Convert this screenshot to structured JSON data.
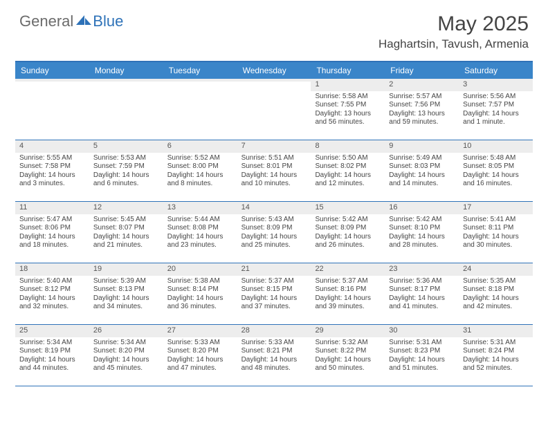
{
  "brand": {
    "general": "General",
    "blue": "Blue"
  },
  "title": "May 2025",
  "location": "Haghartsin, Tavush, Armenia",
  "colors": {
    "header_bg": "#3a85c9",
    "rule": "#2e72b8",
    "daynum_bg": "#ededed",
    "text": "#444444"
  },
  "dow": [
    "Sunday",
    "Monday",
    "Tuesday",
    "Wednesday",
    "Thursday",
    "Friday",
    "Saturday"
  ],
  "weeks": [
    [
      {
        "n": "",
        "sr": "",
        "ss": "",
        "dl": ""
      },
      {
        "n": "",
        "sr": "",
        "ss": "",
        "dl": ""
      },
      {
        "n": "",
        "sr": "",
        "ss": "",
        "dl": ""
      },
      {
        "n": "",
        "sr": "",
        "ss": "",
        "dl": ""
      },
      {
        "n": "1",
        "sr": "Sunrise: 5:58 AM",
        "ss": "Sunset: 7:55 PM",
        "dl": "Daylight: 13 hours and 56 minutes."
      },
      {
        "n": "2",
        "sr": "Sunrise: 5:57 AM",
        "ss": "Sunset: 7:56 PM",
        "dl": "Daylight: 13 hours and 59 minutes."
      },
      {
        "n": "3",
        "sr": "Sunrise: 5:56 AM",
        "ss": "Sunset: 7:57 PM",
        "dl": "Daylight: 14 hours and 1 minute."
      }
    ],
    [
      {
        "n": "4",
        "sr": "Sunrise: 5:55 AM",
        "ss": "Sunset: 7:58 PM",
        "dl": "Daylight: 14 hours and 3 minutes."
      },
      {
        "n": "5",
        "sr": "Sunrise: 5:53 AM",
        "ss": "Sunset: 7:59 PM",
        "dl": "Daylight: 14 hours and 6 minutes."
      },
      {
        "n": "6",
        "sr": "Sunrise: 5:52 AM",
        "ss": "Sunset: 8:00 PM",
        "dl": "Daylight: 14 hours and 8 minutes."
      },
      {
        "n": "7",
        "sr": "Sunrise: 5:51 AM",
        "ss": "Sunset: 8:01 PM",
        "dl": "Daylight: 14 hours and 10 minutes."
      },
      {
        "n": "8",
        "sr": "Sunrise: 5:50 AM",
        "ss": "Sunset: 8:02 PM",
        "dl": "Daylight: 14 hours and 12 minutes."
      },
      {
        "n": "9",
        "sr": "Sunrise: 5:49 AM",
        "ss": "Sunset: 8:03 PM",
        "dl": "Daylight: 14 hours and 14 minutes."
      },
      {
        "n": "10",
        "sr": "Sunrise: 5:48 AM",
        "ss": "Sunset: 8:05 PM",
        "dl": "Daylight: 14 hours and 16 minutes."
      }
    ],
    [
      {
        "n": "11",
        "sr": "Sunrise: 5:47 AM",
        "ss": "Sunset: 8:06 PM",
        "dl": "Daylight: 14 hours and 18 minutes."
      },
      {
        "n": "12",
        "sr": "Sunrise: 5:45 AM",
        "ss": "Sunset: 8:07 PM",
        "dl": "Daylight: 14 hours and 21 minutes."
      },
      {
        "n": "13",
        "sr": "Sunrise: 5:44 AM",
        "ss": "Sunset: 8:08 PM",
        "dl": "Daylight: 14 hours and 23 minutes."
      },
      {
        "n": "14",
        "sr": "Sunrise: 5:43 AM",
        "ss": "Sunset: 8:09 PM",
        "dl": "Daylight: 14 hours and 25 minutes."
      },
      {
        "n": "15",
        "sr": "Sunrise: 5:42 AM",
        "ss": "Sunset: 8:09 PM",
        "dl": "Daylight: 14 hours and 26 minutes."
      },
      {
        "n": "16",
        "sr": "Sunrise: 5:42 AM",
        "ss": "Sunset: 8:10 PM",
        "dl": "Daylight: 14 hours and 28 minutes."
      },
      {
        "n": "17",
        "sr": "Sunrise: 5:41 AM",
        "ss": "Sunset: 8:11 PM",
        "dl": "Daylight: 14 hours and 30 minutes."
      }
    ],
    [
      {
        "n": "18",
        "sr": "Sunrise: 5:40 AM",
        "ss": "Sunset: 8:12 PM",
        "dl": "Daylight: 14 hours and 32 minutes."
      },
      {
        "n": "19",
        "sr": "Sunrise: 5:39 AM",
        "ss": "Sunset: 8:13 PM",
        "dl": "Daylight: 14 hours and 34 minutes."
      },
      {
        "n": "20",
        "sr": "Sunrise: 5:38 AM",
        "ss": "Sunset: 8:14 PM",
        "dl": "Daylight: 14 hours and 36 minutes."
      },
      {
        "n": "21",
        "sr": "Sunrise: 5:37 AM",
        "ss": "Sunset: 8:15 PM",
        "dl": "Daylight: 14 hours and 37 minutes."
      },
      {
        "n": "22",
        "sr": "Sunrise: 5:37 AM",
        "ss": "Sunset: 8:16 PM",
        "dl": "Daylight: 14 hours and 39 minutes."
      },
      {
        "n": "23",
        "sr": "Sunrise: 5:36 AM",
        "ss": "Sunset: 8:17 PM",
        "dl": "Daylight: 14 hours and 41 minutes."
      },
      {
        "n": "24",
        "sr": "Sunrise: 5:35 AM",
        "ss": "Sunset: 8:18 PM",
        "dl": "Daylight: 14 hours and 42 minutes."
      }
    ],
    [
      {
        "n": "25",
        "sr": "Sunrise: 5:34 AM",
        "ss": "Sunset: 8:19 PM",
        "dl": "Daylight: 14 hours and 44 minutes."
      },
      {
        "n": "26",
        "sr": "Sunrise: 5:34 AM",
        "ss": "Sunset: 8:20 PM",
        "dl": "Daylight: 14 hours and 45 minutes."
      },
      {
        "n": "27",
        "sr": "Sunrise: 5:33 AM",
        "ss": "Sunset: 8:20 PM",
        "dl": "Daylight: 14 hours and 47 minutes."
      },
      {
        "n": "28",
        "sr": "Sunrise: 5:33 AM",
        "ss": "Sunset: 8:21 PM",
        "dl": "Daylight: 14 hours and 48 minutes."
      },
      {
        "n": "29",
        "sr": "Sunrise: 5:32 AM",
        "ss": "Sunset: 8:22 PM",
        "dl": "Daylight: 14 hours and 50 minutes."
      },
      {
        "n": "30",
        "sr": "Sunrise: 5:31 AM",
        "ss": "Sunset: 8:23 PM",
        "dl": "Daylight: 14 hours and 51 minutes."
      },
      {
        "n": "31",
        "sr": "Sunrise: 5:31 AM",
        "ss": "Sunset: 8:24 PM",
        "dl": "Daylight: 14 hours and 52 minutes."
      }
    ]
  ]
}
